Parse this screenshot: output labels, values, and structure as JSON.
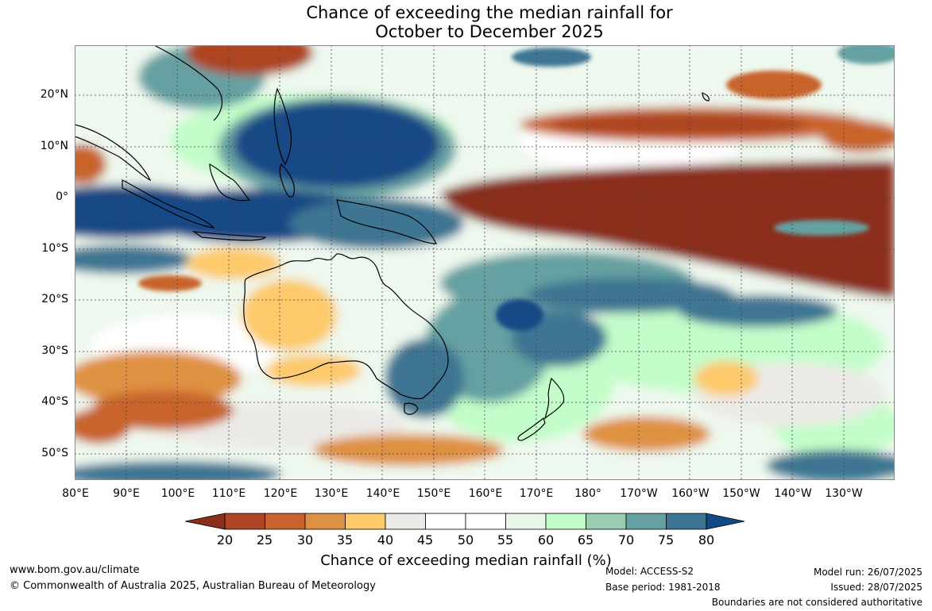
{
  "title_line1": "Chance of exceeding the median rainfall for",
  "title_line2": "October to December 2025",
  "lat_labels": [
    "20°N",
    "10°N",
    "0°",
    "10°S",
    "20°S",
    "30°S",
    "40°S",
    "50°S"
  ],
  "lon_labels": [
    "80°E",
    "90°E",
    "100°E",
    "110°E",
    "120°E",
    "130°E",
    "140°E",
    "150°E",
    "160°E",
    "170°E",
    "180°",
    "170°W",
    "160°W",
    "150°W",
    "140°W",
    "130°W"
  ],
  "colorbar": {
    "labels": [
      "20",
      "25",
      "30",
      "35",
      "40",
      "45",
      "50",
      "55",
      "60",
      "65",
      "70",
      "75",
      "80"
    ],
    "colors": [
      "#8b2f1c",
      "#ad4424",
      "#c8632c",
      "#df9143",
      "#fdc96a",
      "#eceae6",
      "#ffffff",
      "#ffffff",
      "#e8f8e8",
      "#c3fdc9",
      "#99ccb0",
      "#65a0a2",
      "#3c7593",
      "#124a86"
    ],
    "title": "Chance of exceeding median rainfall (%)"
  },
  "footer": {
    "website": "www.bom.gov.au/climate",
    "copyright": "© Commonwealth of Australia 2025, Australian Bureau of Meteorology",
    "model": "Model: ACCESS-S2",
    "base_period": "Base period: 1981-2018",
    "model_run": "Model run: 26/07/2025",
    "issued": "Issued: 28/07/2025",
    "disclaimer": "Boundaries are not considered authoritative"
  }
}
